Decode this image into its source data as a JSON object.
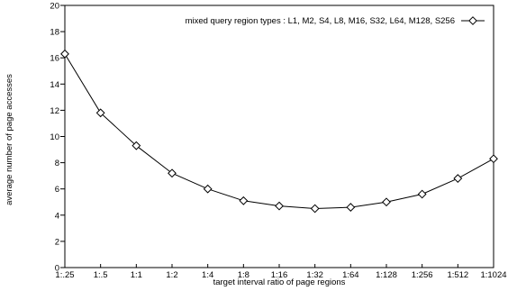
{
  "chart_data": {
    "type": "line",
    "xlabel": "target interval ratio of page regions",
    "ylabel": "average number of page accesses",
    "categories": [
      "1:.25",
      "1:.5",
      "1:1",
      "1:2",
      "1:4",
      "1:8",
      "1:16",
      "1:32",
      "1:64",
      "1:128",
      "1:256",
      "1:512",
      "1:1024"
    ],
    "series": [
      {
        "name": "mixed query region types : L1, M2, S4, L8, M16, S32, L64, M128, S256",
        "values": [
          16.3,
          11.8,
          9.3,
          7.2,
          6.0,
          5.1,
          4.7,
          4.5,
          4.6,
          5.0,
          5.6,
          6.8,
          8.3
        ],
        "marker": "diamond",
        "color": "#000000"
      }
    ],
    "ylim": [
      0,
      20
    ],
    "yticks": [
      0,
      2,
      4,
      6,
      8,
      10,
      12,
      14,
      16,
      18,
      20
    ],
    "grid": false,
    "legend_position": "top-right"
  }
}
